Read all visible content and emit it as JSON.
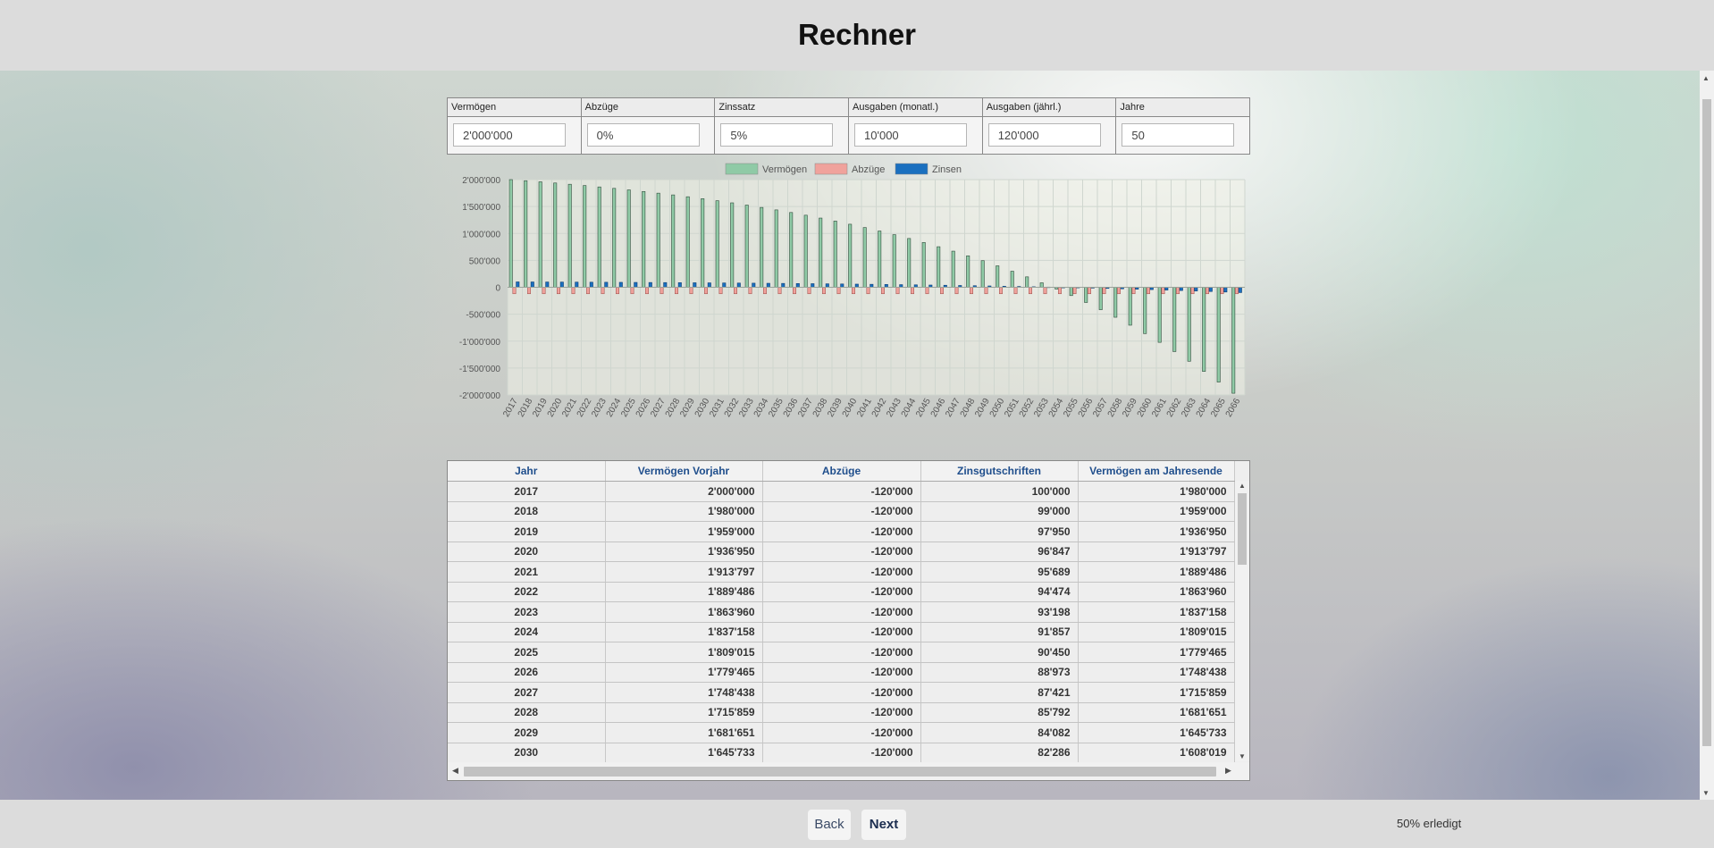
{
  "header": {
    "title": "Rechner"
  },
  "inputs": [
    {
      "label": "Vermögen",
      "value": "2'000'000"
    },
    {
      "label": "Abzüge",
      "value": "0%"
    },
    {
      "label": "Zinssatz",
      "value": "5%"
    },
    {
      "label": "Ausgaben (monatl.)",
      "value": "10'000"
    },
    {
      "label": "Ausgaben (jährl.)",
      "value": "120'000"
    },
    {
      "label": "Jahre",
      "value": "50"
    }
  ],
  "chart_data": {
    "type": "bar",
    "legend": [
      "Vermögen",
      "Abzüge",
      "Zinsen"
    ],
    "legend_position": "top-center",
    "colors": {
      "Vermögen": "#8fcaa6",
      "Abzüge": "#f0a29c",
      "Zinsen": "#1a6fbf"
    },
    "yticks": [
      "2'000'000",
      "1'500'000",
      "1'000'000",
      "500'000",
      "0",
      "-500'000",
      "-1'000'000",
      "-1'500'000",
      "-2'000'000"
    ],
    "ylim": [
      -2000000,
      2000000
    ],
    "grid": true,
    "categories": [
      "2017",
      "2018",
      "2019",
      "2020",
      "2021",
      "2022",
      "2023",
      "2024",
      "2025",
      "2026",
      "2027",
      "2028",
      "2029",
      "2030",
      "2031",
      "2032",
      "2033",
      "2034",
      "2035",
      "2036",
      "2037",
      "2038",
      "2039",
      "2040",
      "2041",
      "2042",
      "2043",
      "2044",
      "2045",
      "2046",
      "2047",
      "2048",
      "2049",
      "2050",
      "2051",
      "2052",
      "2053",
      "2054",
      "2055",
      "2056",
      "2057",
      "2058",
      "2059",
      "2060",
      "2061",
      "2062",
      "2063",
      "2064",
      "2065",
      "2066"
    ],
    "series": [
      {
        "name": "Vermögen",
        "values": [
          2000000,
          1980000,
          1959000,
          1936950,
          1913797,
          1889486,
          1863960,
          1837158,
          1809015,
          1779465,
          1748438,
          1715859,
          1681651,
          1645733,
          1608019,
          1568420,
          1526841,
          1483183,
          1437342,
          1389209,
          1338669,
          1285603,
          1229883,
          1171377,
          1109946,
          1045443,
          977715,
          906601,
          831931,
          753527,
          671204,
          584764,
          494003,
          398703,
          298638,
          193570,
          83248,
          -32589,
          -154219,
          -281930,
          -416026,
          -556827,
          -704669,
          -859902,
          -1022898,
          -1194043,
          -1373745,
          -1562432,
          -1760554,
          -1968581
        ]
      },
      {
        "name": "Abzüge",
        "values": [
          -120000,
          -120000,
          -120000,
          -120000,
          -120000,
          -120000,
          -120000,
          -120000,
          -120000,
          -120000,
          -120000,
          -120000,
          -120000,
          -120000,
          -120000,
          -120000,
          -120000,
          -120000,
          -120000,
          -120000,
          -120000,
          -120000,
          -120000,
          -120000,
          -120000,
          -120000,
          -120000,
          -120000,
          -120000,
          -120000,
          -120000,
          -120000,
          -120000,
          -120000,
          -120000,
          -120000,
          -120000,
          -120000,
          -120000,
          -120000,
          -120000,
          -120000,
          -120000,
          -120000,
          -120000,
          -120000,
          -120000,
          -120000,
          -120000,
          -120000
        ]
      },
      {
        "name": "Zinsen",
        "values": [
          100000,
          99000,
          97950,
          96847,
          95689,
          94474,
          93198,
          91857,
          90450,
          88973,
          87421,
          85792,
          84082,
          82286,
          80400,
          78421,
          76342,
          74159,
          71867,
          69460,
          66933,
          64280,
          61494,
          58568,
          55497,
          52272,
          48886,
          45330,
          41596,
          37676,
          33560,
          29238,
          24700,
          19935,
          14931,
          9678,
          4162,
          -1629,
          -7711,
          -14096,
          -20801,
          -27841,
          -35233,
          -42995,
          -51145,
          -59702,
          -68687,
          -78122,
          -88028,
          -98429
        ]
      }
    ]
  },
  "table": {
    "columns": [
      "Jahr",
      "Vermögen Vorjahr",
      "Abzüge",
      "Zinsgutschriften",
      "Vermögen am Jahresende"
    ],
    "rows": [
      [
        "2017",
        "2'000'000",
        "-120'000",
        "100'000",
        "1'980'000"
      ],
      [
        "2018",
        "1'980'000",
        "-120'000",
        "99'000",
        "1'959'000"
      ],
      [
        "2019",
        "1'959'000",
        "-120'000",
        "97'950",
        "1'936'950"
      ],
      [
        "2020",
        "1'936'950",
        "-120'000",
        "96'847",
        "1'913'797"
      ],
      [
        "2021",
        "1'913'797",
        "-120'000",
        "95'689",
        "1'889'486"
      ],
      [
        "2022",
        "1'889'486",
        "-120'000",
        "94'474",
        "1'863'960"
      ],
      [
        "2023",
        "1'863'960",
        "-120'000",
        "93'198",
        "1'837'158"
      ],
      [
        "2024",
        "1'837'158",
        "-120'000",
        "91'857",
        "1'809'015"
      ],
      [
        "2025",
        "1'809'015",
        "-120'000",
        "90'450",
        "1'779'465"
      ],
      [
        "2026",
        "1'779'465",
        "-120'000",
        "88'973",
        "1'748'438"
      ],
      [
        "2027",
        "1'748'438",
        "-120'000",
        "87'421",
        "1'715'859"
      ],
      [
        "2028",
        "1'715'859",
        "-120'000",
        "85'792",
        "1'681'651"
      ],
      [
        "2029",
        "1'681'651",
        "-120'000",
        "84'082",
        "1'645'733"
      ],
      [
        "2030",
        "1'645'733",
        "-120'000",
        "82'286",
        "1'608'019"
      ]
    ]
  },
  "footer": {
    "back_label": "Back",
    "next_label": "Next",
    "progress_text": "50% erledigt"
  }
}
